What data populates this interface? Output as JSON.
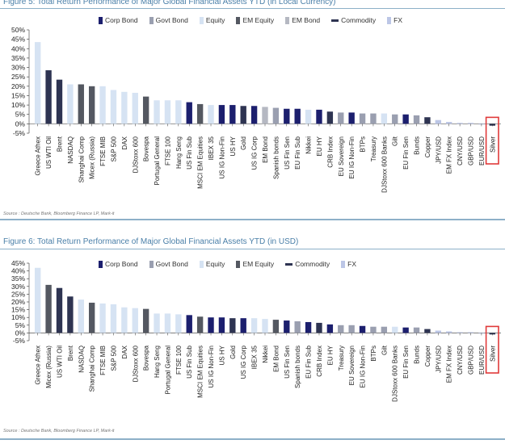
{
  "colors": {
    "Corp Bond": "#1c1f6e",
    "Govt Bond": "#9a9fb0",
    "Equity": "#d6e3f3",
    "EM Equity": "#545861",
    "EM Bond": "#b5b8c2",
    "Commodity": "#2e3452",
    "FX": "#bcc6e6",
    "highlight": "#e03a3a"
  },
  "chart_data": [
    {
      "type": "bar",
      "title": "Figure 5: Total Return Performance of Major Global Financial Assets YTD (in Local Currency)",
      "source": "Source : Deutsche Bank, Bloomberg Finance LP, Mark-it",
      "legend": [
        "Corp Bond",
        "Govt Bond",
        "Equity",
        "EM Equity",
        "EM Bond",
        "Commodity",
        "FX"
      ],
      "ylim": [
        -5,
        50
      ],
      "yticks": [
        -5,
        0,
        5,
        10,
        15,
        20,
        25,
        30,
        35,
        40,
        45,
        50
      ],
      "ytick_labels": [
        "-5%",
        "0%",
        "5%",
        "10%",
        "15%",
        "20%",
        "25%",
        "30%",
        "35%",
        "40%",
        "45%",
        "50%"
      ],
      "highlight": "Silver",
      "categories": [
        "Greece Athex",
        "US WTI Oil",
        "Brent",
        "NASDAQ",
        "Shanghai Comp",
        "Micex (Russia)",
        "FTSE MIB",
        "S&P 500",
        "DAX",
        "DJStoxx 600",
        "Bovespa",
        "Portugal General",
        "FTSE 100",
        "Hang Seng",
        "US Fin Sub",
        "MSCI EM Equities",
        "IBEX 35",
        "US IG Non-Fin",
        "US HY",
        "Gold",
        "US IG Corp",
        "EM Bond",
        "Spanish bonds",
        "US Fin Sen",
        "EU Fin Sub",
        "Nikkei",
        "EU HY",
        "CRB Index",
        "EU Sovereign",
        "EU IG Non-Fin",
        "BTPs",
        "Treasury",
        "DJStoxx 600 Banks",
        "Gilt",
        "EU Fin Sen",
        "Bunds",
        "Copper",
        "JPY/USD",
        "EM FX Index",
        "CNY/USD",
        "GBP/USD",
        "EUR/USD",
        "Silver"
      ],
      "classes": [
        "Equity",
        "Commodity",
        "Commodity",
        "Equity",
        "EM Equity",
        "EM Equity",
        "Equity",
        "Equity",
        "Equity",
        "Equity",
        "EM Equity",
        "Equity",
        "Equity",
        "Equity",
        "Corp Bond",
        "EM Equity",
        "Equity",
        "Corp Bond",
        "Corp Bond",
        "Commodity",
        "Corp Bond",
        "EM Bond",
        "Govt Bond",
        "Corp Bond",
        "Corp Bond",
        "Equity",
        "Corp Bond",
        "Commodity",
        "Govt Bond",
        "Corp Bond",
        "Govt Bond",
        "Govt Bond",
        "Equity",
        "Govt Bond",
        "Corp Bond",
        "Govt Bond",
        "Commodity",
        "FX",
        "FX",
        "FX",
        "FX",
        "FX",
        "Commodity"
      ],
      "values": [
        43.5,
        28.5,
        23.5,
        21,
        21,
        20,
        20,
        18,
        17,
        16.5,
        14.5,
        12.5,
        12.5,
        12.5,
        11.5,
        10.5,
        10,
        10,
        10,
        9.5,
        9.5,
        9,
        8.5,
        8,
        8,
        7.5,
        7.5,
        6.5,
        6,
        6,
        5.5,
        5.5,
        5.5,
        5,
        5,
        4.5,
        3.5,
        2,
        1,
        0.5,
        0.5,
        0,
        -1
      ]
    },
    {
      "type": "bar",
      "title": "Figure 6: Total Return Performance of Major Global Financial Assets YTD (in USD)",
      "source": "Source : Deutsche Bank, Bloomberg Finance LP, Mark-it",
      "legend": [
        "Corp Bond",
        "Govt Bond",
        "Equity",
        "EM Equity",
        "Commodity",
        "FX"
      ],
      "ylim": [
        -5,
        45
      ],
      "yticks": [
        -5,
        0,
        5,
        10,
        15,
        20,
        25,
        30,
        35,
        40,
        45
      ],
      "ytick_labels": [
        "-5%",
        "0%",
        "5%",
        "10%",
        "15%",
        "20%",
        "25%",
        "30%",
        "35%",
        "40%",
        "45%"
      ],
      "highlight": "Silver",
      "categories": [
        "Greece Athex",
        "Micex (Russia)",
        "US WTI Oil",
        "Brent",
        "NASDAQ",
        "Shanghai Comp",
        "FTSE MIB",
        "S&P 500",
        "DAX",
        "DJStoxx 600",
        "Bovespa",
        "Hang Seng",
        "Portugal General",
        "FTSE 100",
        "US Fin Sub",
        "MSCI EM Equities",
        "US IG Non-Fin",
        "US HY",
        "Gold",
        "US IG Corp",
        "IBEX 35",
        "Nikkei",
        "EM Bond",
        "US Fin Sen",
        "Spanish bonds",
        "EU Fin Sub",
        "CRB Index",
        "EU HY",
        "Treasury",
        "EU Sovereign",
        "EU IG Non-Fin",
        "BTPs",
        "Gilt",
        "DJStoxx 600 Banks",
        "EU Fin Sen",
        "Bunds",
        "Copper",
        "JPY/USD",
        "EM FX Index",
        "CNY/USD",
        "GBP/USD",
        "EUR/USD",
        "Silver"
      ],
      "classes": [
        "Equity",
        "EM Equity",
        "Commodity",
        "Commodity",
        "Equity",
        "EM Equity",
        "Equity",
        "Equity",
        "Equity",
        "Equity",
        "EM Equity",
        "Equity",
        "Equity",
        "Equity",
        "Corp Bond",
        "EM Equity",
        "Corp Bond",
        "Corp Bond",
        "Commodity",
        "Corp Bond",
        "Equity",
        "Equity",
        "EM Equity",
        "Corp Bond",
        "Govt Bond",
        "Corp Bond",
        "Commodity",
        "Corp Bond",
        "Govt Bond",
        "Govt Bond",
        "Corp Bond",
        "Govt Bond",
        "Govt Bond",
        "Equity",
        "Corp Bond",
        "Govt Bond",
        "Commodity",
        "FX",
        "FX",
        "FX",
        "FX",
        "FX",
        "Commodity"
      ],
      "values": [
        42,
        31,
        29,
        23.5,
        21.5,
        19.5,
        19,
        18.5,
        16.5,
        16,
        15.5,
        12.5,
        12.5,
        12,
        11.5,
        10.5,
        10,
        10,
        9.5,
        9.5,
        9.5,
        9,
        8.5,
        8,
        7.5,
        7,
        6.5,
        5.5,
        5,
        5,
        4.5,
        4,
        4,
        4,
        3.5,
        3.5,
        2.5,
        1.5,
        1,
        0.5,
        0.5,
        0,
        -1
      ]
    }
  ]
}
